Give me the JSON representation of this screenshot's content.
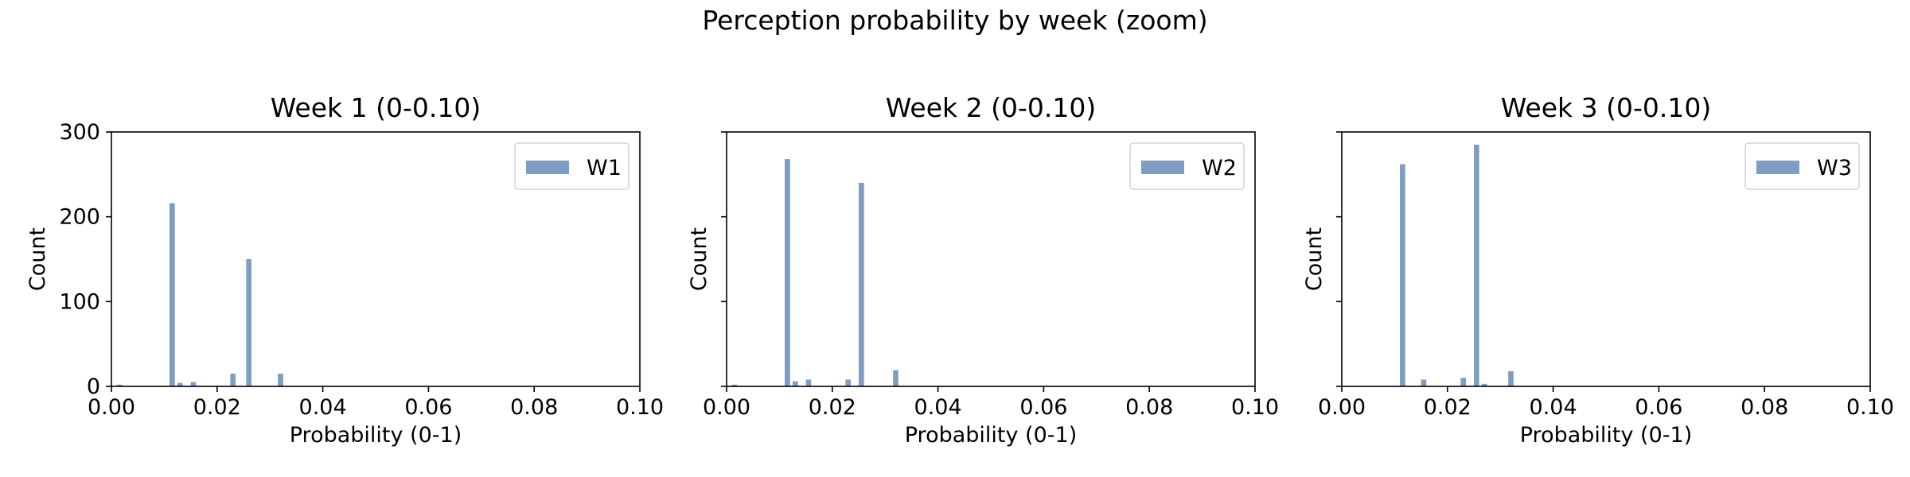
{
  "figure_title": "Perception probability by week (zoom)",
  "chart_data": [
    {
      "type": "bar",
      "title": "Week 1 (0-0.10)",
      "xlabel": "Probability (0-1)",
      "ylabel": "Count",
      "xlim": [
        0,
        0.1
      ],
      "ylim": [
        0,
        300
      ],
      "xticks": [
        "0.00",
        "0.02",
        "0.04",
        "0.06",
        "0.08",
        "0.10"
      ],
      "yticks": [
        "0",
        "100",
        "200",
        "300"
      ],
      "show_ytick_labels": true,
      "grid": false,
      "legend": "top-right",
      "color": "#7f9cc3",
      "series": [
        {
          "name": "W1",
          "bin_width": 0.001,
          "bars": [
            {
              "x": 0.0015,
              "count": 2
            },
            {
              "x": 0.0115,
              "count": 216
            },
            {
              "x": 0.013,
              "count": 4
            },
            {
              "x": 0.0155,
              "count": 5
            },
            {
              "x": 0.023,
              "count": 15
            },
            {
              "x": 0.026,
              "count": 150
            },
            {
              "x": 0.032,
              "count": 15
            }
          ]
        }
      ]
    },
    {
      "type": "bar",
      "title": "Week 2 (0-0.10)",
      "xlabel": "Probability (0-1)",
      "ylabel": "Count",
      "xlim": [
        0,
        0.1
      ],
      "ylim": [
        0,
        300
      ],
      "xticks": [
        "0.00",
        "0.02",
        "0.04",
        "0.06",
        "0.08",
        "0.10"
      ],
      "yticks": [
        "0",
        "100",
        "200",
        "300"
      ],
      "show_ytick_labels": false,
      "grid": false,
      "legend": "top-right",
      "color": "#7f9cc3",
      "series": [
        {
          "name": "W2",
          "bin_width": 0.001,
          "bars": [
            {
              "x": 0.0015,
              "count": 2
            },
            {
              "x": 0.0115,
              "count": 268
            },
            {
              "x": 0.013,
              "count": 6
            },
            {
              "x": 0.0155,
              "count": 8
            },
            {
              "x": 0.023,
              "count": 8
            },
            {
              "x": 0.0255,
              "count": 240
            },
            {
              "x": 0.032,
              "count": 19
            }
          ]
        }
      ]
    },
    {
      "type": "bar",
      "title": "Week 3 (0-0.10)",
      "xlabel": "Probability (0-1)",
      "ylabel": "Count",
      "xlim": [
        0,
        0.1
      ],
      "ylim": [
        0,
        300
      ],
      "xticks": [
        "0.00",
        "0.02",
        "0.04",
        "0.06",
        "0.08",
        "0.10"
      ],
      "yticks": [
        "0",
        "100",
        "200",
        "300"
      ],
      "show_ytick_labels": false,
      "grid": false,
      "legend": "top-right",
      "color": "#7f9cc3",
      "series": [
        {
          "name": "W3",
          "bin_width": 0.001,
          "bars": [
            {
              "x": 0.0115,
              "count": 262
            },
            {
              "x": 0.0155,
              "count": 8
            },
            {
              "x": 0.023,
              "count": 10
            },
            {
              "x": 0.0255,
              "count": 285
            },
            {
              "x": 0.027,
              "count": 3
            },
            {
              "x": 0.032,
              "count": 18
            }
          ]
        }
      ]
    }
  ]
}
